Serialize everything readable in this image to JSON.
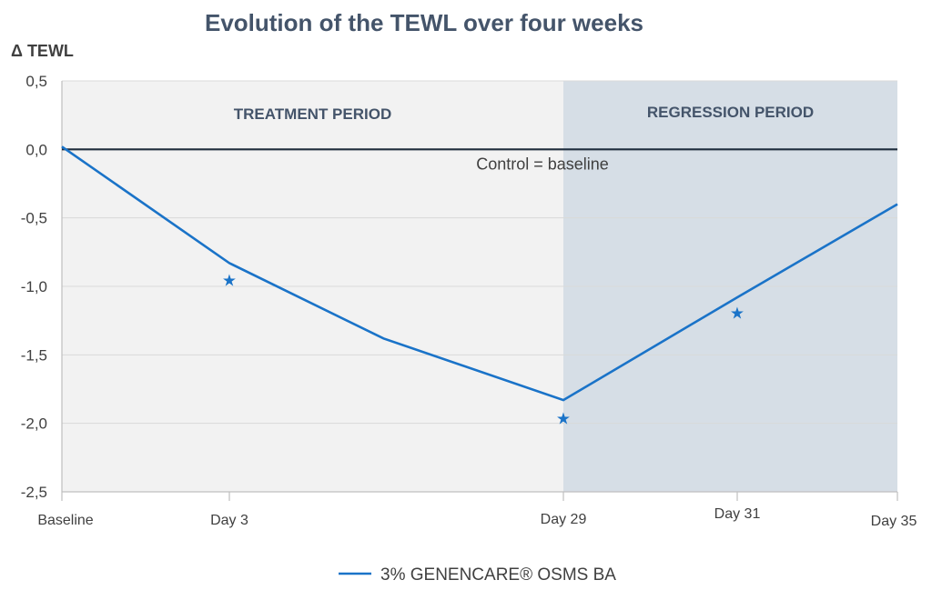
{
  "chart_data": {
    "type": "line",
    "title": "Evolution of the TEWL over four weeks",
    "ylabel": "Δ TEWL",
    "ylim": [
      -2.5,
      0.5
    ],
    "yticks": [
      "0,5",
      "0,0",
      "-0,5",
      "-1,0",
      "-1,5",
      "-2,0",
      "-2,5"
    ],
    "ytick_values": [
      0.5,
      0.0,
      -0.5,
      -1.0,
      -1.5,
      -2.0,
      -2.5
    ],
    "x_labels": [
      "Baseline",
      "Day 3",
      "Day 29",
      "Day 31",
      "Day 35"
    ],
    "x_label_days": [
      0,
      3,
      29,
      31,
      35
    ],
    "periods": [
      {
        "label": "TREATMENT PERIOD",
        "from_day": 0,
        "to_day": 29,
        "color": "#f2f2f2"
      },
      {
        "label": "REGRESSION PERIOD",
        "from_day": 29,
        "to_day": 35,
        "color": "#d6dee6"
      }
    ],
    "baseline_annotation": "Control = baseline",
    "series": [
      {
        "name": "3% GENENCARE® OSMS BA",
        "color": "#1a73c8",
        "points": [
          {
            "day": 0,
            "value": 0.02
          },
          {
            "day": 3,
            "value": -0.83
          },
          {
            "day": 15,
            "value": -1.38
          },
          {
            "day": 29,
            "value": -1.83
          },
          {
            "day": 31,
            "value": -1.08
          },
          {
            "day": 35,
            "value": -0.4
          }
        ]
      }
    ],
    "significance_markers": [
      {
        "day": 3,
        "value": -0.95,
        "symbol": "★"
      },
      {
        "day": 29,
        "value": -1.96,
        "symbol": "★"
      },
      {
        "day": 31,
        "value": -1.19,
        "symbol": "★"
      }
    ],
    "grid": true,
    "legend_position": "bottom-center"
  }
}
